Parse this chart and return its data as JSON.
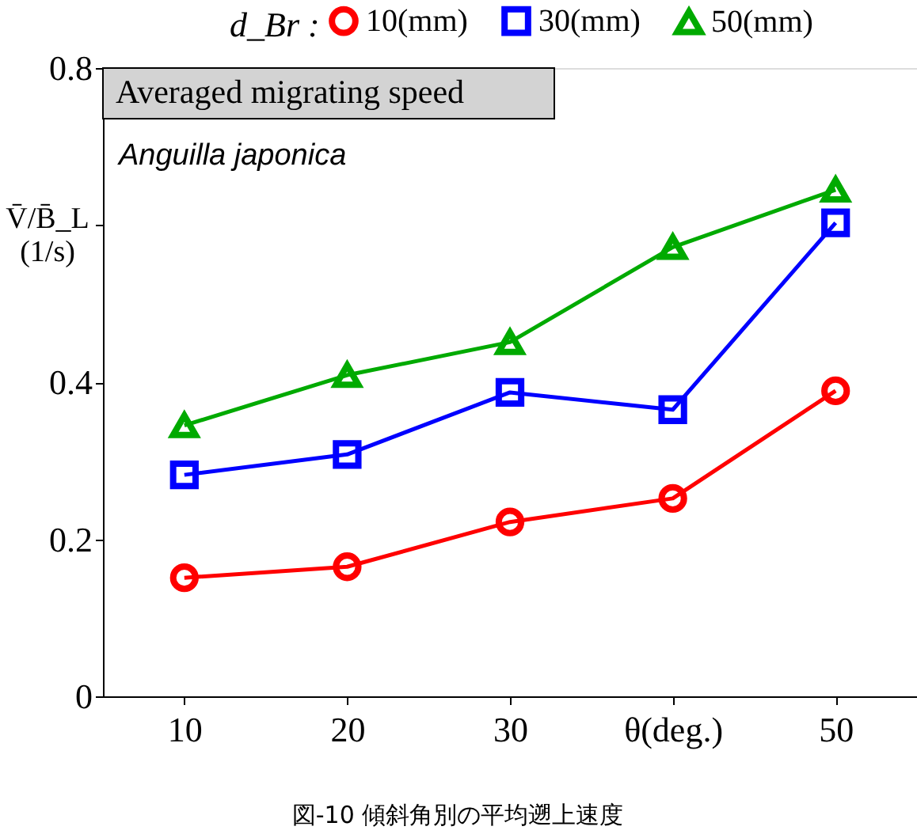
{
  "chart_data": {
    "type": "line",
    "title": "Averaged migrating speed",
    "ylabel": "V̄/B̄_L (1/s)",
    "legend_title": "d_Br :",
    "x": [
      10,
      20,
      30,
      40,
      50
    ],
    "xlim": [
      5,
      55
    ],
    "xticks": [
      10,
      20,
      30,
      {
        "value": 40,
        "label": "θ(deg.)"
      },
      50
    ],
    "ylim": [
      0,
      0.8
    ],
    "yticks": [
      0,
      0.2,
      0.4,
      {
        "value": 0.6,
        "label": null
      },
      0.8
    ],
    "series": [
      {
        "name": "10(mm)",
        "color": "#ff0000",
        "marker": "circle",
        "values": [
          0.151,
          0.165,
          0.222,
          0.252,
          0.389
        ]
      },
      {
        "name": "30(mm)",
        "color": "#0000ff",
        "marker": "square",
        "values": [
          0.282,
          0.308,
          0.387,
          0.365,
          0.603
        ]
      },
      {
        "name": "50(mm)",
        "color": "#00aa00",
        "marker": "triangle",
        "values": [
          0.345,
          0.409,
          0.451,
          0.572,
          0.645
        ]
      }
    ],
    "annotations": [
      "Anguilla japonica",
      "図-10 傾斜角別の平均遡上速度"
    ],
    "legend": "top",
    "grid": false
  }
}
